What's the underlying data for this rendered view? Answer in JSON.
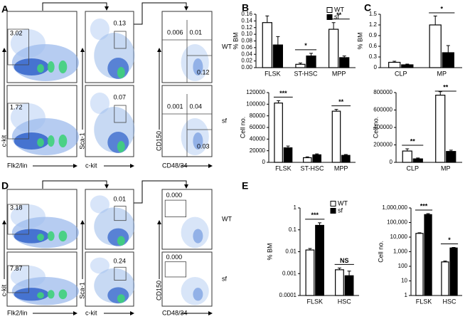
{
  "flow_panels": [
    {
      "label": "A",
      "rows": [
        "WT",
        "sf"
      ],
      "plots": [
        {
          "x_label": "Flk2/lin",
          "y_label": "c-kit",
          "gates": [
            [
              "3.02"
            ],
            [
              "1.72"
            ]
          ]
        },
        {
          "x_label": "c-kit",
          "y_label": "Sca-1",
          "gates": [
            [
              "0.13"
            ],
            [
              "0.07"
            ]
          ]
        },
        {
          "x_label": "CD48/34",
          "y_label": "CD150",
          "gates": [
            [
              "0.006",
              "0.01",
              "0.12"
            ],
            [
              "0.001",
              "0.04",
              "0.03"
            ]
          ]
        }
      ]
    },
    {
      "label": "D",
      "rows": [
        "WT",
        "sf"
      ],
      "plots": [
        {
          "x_label": "Flk2/lin",
          "y_label": "c-kit",
          "gates": [
            [
              "3.18"
            ],
            [
              "7.87"
            ]
          ]
        },
        {
          "x_label": "c-kit",
          "y_label": "Sca-1",
          "gates": [
            [
              "0.01"
            ],
            [
              "0.24"
            ]
          ]
        },
        {
          "x_label": "CD48/34",
          "y_label": "CD150",
          "gates": [
            [
              "0.000"
            ],
            [
              "0.000"
            ]
          ]
        }
      ]
    }
  ],
  "chart_data": [
    {
      "type": "bar",
      "panel": "B",
      "y_label": "% BM",
      "categories": [
        "FLSK",
        "ST-HSC",
        "MPP"
      ],
      "series": [
        {
          "name": "WT",
          "color": "#ffffff",
          "values": [
            0.135,
            0.01,
            0.115
          ],
          "errors": [
            0.02,
            0.004,
            0.02
          ]
        },
        {
          "name": "sf",
          "color": "#000000",
          "values": [
            0.068,
            0.035,
            0.03
          ],
          "errors": [
            0.025,
            0.008,
            0.005
          ]
        }
      ],
      "ylim": [
        0,
        0.16
      ],
      "yticks": [
        {
          "value": 0,
          "label": "0.00"
        },
        {
          "value": 0.02,
          "label": "0.02"
        },
        {
          "value": 0.04,
          "label": "0.04"
        },
        {
          "value": 0.06,
          "label": "0.06"
        },
        {
          "value": 0.08,
          "label": "0.08"
        },
        {
          "value": 0.1,
          "label": "0.10"
        },
        {
          "value": 0.12,
          "label": "0.12"
        },
        {
          "value": 0.14,
          "label": "0.14"
        },
        {
          "value": 0.16,
          "label": "0.16"
        }
      ],
      "legend": "top-right",
      "annotations": [
        {
          "text": "*",
          "category": "ST-HSC"
        },
        {
          "text": "**",
          "category": "MPP"
        }
      ]
    },
    {
      "type": "bar",
      "y_label": "Cell no.",
      "categories": [
        "FLSK",
        "ST-HSC",
        "MPP"
      ],
      "series": [
        {
          "name": "WT",
          "color": "#ffffff",
          "values": [
            102000,
            8000,
            88000
          ],
          "errors": [
            4000,
            1500,
            3000
          ]
        },
        {
          "name": "sf",
          "color": "#000000",
          "values": [
            25000,
            13000,
            12000
          ],
          "errors": [
            3000,
            1500,
            1500
          ]
        }
      ],
      "ylim": [
        0,
        120000
      ],
      "yticks": [
        0,
        20000,
        40000,
        60000,
        80000,
        100000,
        120000
      ],
      "annotations": [
        {
          "text": "***",
          "category": "FLSK"
        },
        {
          "text": "**",
          "category": "MPP"
        }
      ]
    },
    {
      "type": "bar",
      "panel": "C",
      "y_label": "% BM",
      "categories": [
        "CLP",
        "MP"
      ],
      "series": [
        {
          "name": "WT",
          "color": "#ffffff",
          "values": [
            0.15,
            1.2
          ],
          "errors": [
            0.03,
            0.25
          ]
        },
        {
          "name": "sf",
          "color": "#000000",
          "values": [
            0.08,
            0.42
          ],
          "errors": [
            0.02,
            0.2
          ]
        }
      ],
      "ylim": [
        0,
        1.5
      ],
      "yticks": [
        0,
        0.3,
        0.6,
        0.9,
        1.2,
        1.5
      ],
      "annotations": [
        {
          "text": "*",
          "category": "MP"
        }
      ]
    },
    {
      "type": "bar",
      "y_label": "Cell no.",
      "categories": [
        "CLP",
        "MP"
      ],
      "series": [
        {
          "name": "WT",
          "color": "#ffffff",
          "values": [
            130000,
            770000
          ],
          "errors": [
            25000,
            40000
          ]
        },
        {
          "name": "sf",
          "color": "#000000",
          "values": [
            40000,
            125000
          ],
          "errors": [
            10000,
            15000
          ]
        }
      ],
      "ylim": [
        0,
        800000
      ],
      "yticks": [
        0,
        200000,
        400000,
        600000,
        800000
      ],
      "annotations": [
        {
          "text": "**",
          "category": "CLP"
        },
        {
          "text": "**",
          "category": "MP"
        }
      ]
    },
    {
      "type": "bar",
      "panel": "E",
      "y_label": "% BM",
      "log_scale": true,
      "categories": [
        "FLSK",
        "HSC"
      ],
      "series": [
        {
          "name": "WT",
          "color": "#ffffff",
          "values": [
            0.012,
            0.0015
          ],
          "errors": [
            0.002,
            0.0003
          ]
        },
        {
          "name": "sf",
          "color": "#000000",
          "values": [
            0.16,
            0.0008
          ],
          "errors": [
            0.05,
            0.0005
          ]
        }
      ],
      "ylim": [
        0.0001,
        1
      ],
      "yticks": [
        0.0001,
        0.001,
        0.01,
        0.1,
        1
      ],
      "legend": "top-right",
      "annotations": [
        {
          "text": "***",
          "category": "FLSK"
        },
        {
          "text": "NS",
          "category": "HSC"
        }
      ]
    },
    {
      "type": "bar",
      "y_label": "Cell no.",
      "log_scale": true,
      "categories": [
        "FLSK",
        "HSC"
      ],
      "series": [
        {
          "name": "WT",
          "color": "#ffffff",
          "values": [
            18000,
            200
          ],
          "errors": [
            2000,
            30
          ]
        },
        {
          "name": "sf",
          "color": "#000000",
          "values": [
            350000,
            1800
          ],
          "errors": [
            60000,
            150
          ]
        }
      ],
      "ylim": [
        1,
        1000000
      ],
      "yticks": [
        1,
        10,
        100,
        {
          "value": 1000,
          "label": "1,000"
        },
        {
          "value": 10000,
          "label": "10,000"
        },
        {
          "value": 100000,
          "label": "100,000"
        },
        {
          "value": 1000000,
          "label": "1,000,000"
        }
      ],
      "annotations": [
        {
          "text": "***",
          "category": "FLSK"
        },
        {
          "text": "*",
          "category": "HSC"
        }
      ]
    }
  ]
}
